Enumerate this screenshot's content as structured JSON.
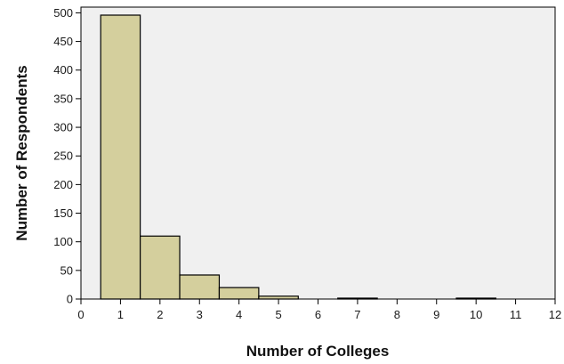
{
  "chart_data": {
    "type": "bar",
    "title": "",
    "xlabel": "Number of Colleges",
    "ylabel": "Number of Respondents",
    "xlim": [
      0,
      12
    ],
    "ylim": [
      0,
      510
    ],
    "xticks": [
      0,
      1,
      2,
      3,
      4,
      5,
      6,
      7,
      8,
      9,
      10,
      11,
      12
    ],
    "yticks": [
      0,
      50,
      100,
      150,
      200,
      250,
      300,
      350,
      400,
      450,
      500
    ],
    "bin_width": 1,
    "x": [
      1,
      2,
      3,
      4,
      5,
      7,
      10
    ],
    "values": [
      496,
      110,
      42,
      20,
      5,
      1,
      1
    ],
    "grid": false,
    "legend": "none",
    "colors": {
      "bar_fill": "#D4CF9D",
      "bar_stroke": "#000000",
      "plot_background": "#F0F0F0",
      "axis": "#000000"
    }
  }
}
